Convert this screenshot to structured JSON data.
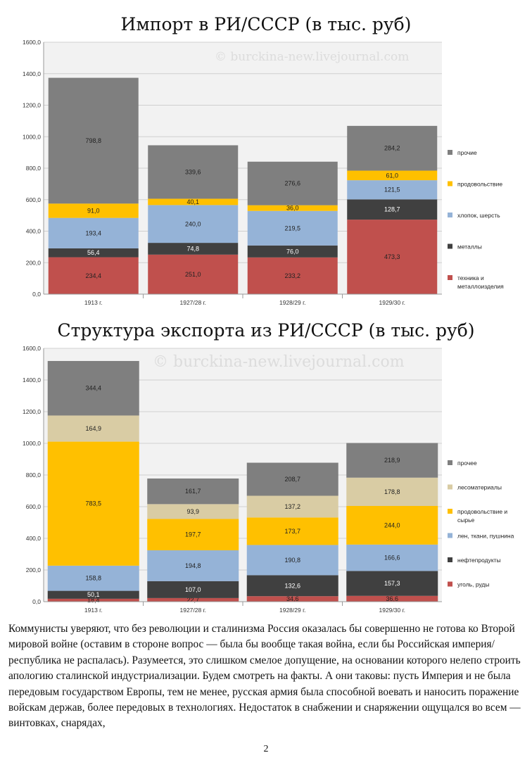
{
  "watermark": "© burckina-new.livejournal.com",
  "chart_data": [
    {
      "type": "bar",
      "stacked": true,
      "title": "Импорт в РИ/СССР (в тыс. руб)",
      "categories": [
        "1913 г.",
        "1927/28 г.",
        "1928/29 г.",
        "1929/30 г."
      ],
      "series": [
        {
          "name": "техника и металлоизделия",
          "values": [
            234.4,
            251.0,
            233.2,
            473.3
          ],
          "labels": [
            "234,4",
            "251,0",
            "233,2",
            "473,3"
          ],
          "color": "#c0504d"
        },
        {
          "name": "металлы",
          "values": [
            56.4,
            74.8,
            76.0,
            128.7
          ],
          "labels": [
            "56,4",
            "74,8",
            "76,0",
            "128,7"
          ],
          "color": "#404040"
        },
        {
          "name": "хлопок, шерсть",
          "values": [
            193.4,
            240.0,
            219.5,
            121.5
          ],
          "labels": [
            "193,4",
            "240,0",
            "219,5",
            "121,5"
          ],
          "color": "#95b3d7"
        },
        {
          "name": "продовольствие",
          "values": [
            91.0,
            40.1,
            36.0,
            61.0
          ],
          "labels": [
            "91,0",
            "40,1",
            "36,0",
            "61,0"
          ],
          "color": "#ffc000"
        },
        {
          "name": "прочие",
          "values": [
            798.8,
            339.6,
            276.6,
            284.2
          ],
          "labels": [
            "798,8",
            "339,6",
            "276,6",
            "284,2"
          ],
          "color": "#7f7f7f"
        }
      ],
      "yticks": [
        "0,0",
        "200,0",
        "400,0",
        "600,0",
        "800,0",
        "1000,0",
        "1200,0",
        "1400,0",
        "1600,0"
      ],
      "ylim": [
        0,
        1600
      ],
      "legend_position": "right",
      "grid": true
    },
    {
      "type": "bar",
      "stacked": true,
      "title": "Структура экспорта из РИ/СССР (в тыс. руб)",
      "categories": [
        "1913 г.",
        "1927/28 г.",
        "1928/29 г.",
        "1929/30 г."
      ],
      "series": [
        {
          "name": "уголь, руды",
          "values": [
            18.4,
            22.7,
            34.6,
            36.6
          ],
          "labels": [
            "18,4",
            "22,7",
            "34,6",
            "36,6"
          ],
          "color": "#c0504d"
        },
        {
          "name": "нефтепродукты",
          "values": [
            50.1,
            107.0,
            132.6,
            157.3
          ],
          "labels": [
            "50,1",
            "107,0",
            "132,6",
            "157,3"
          ],
          "color": "#404040"
        },
        {
          "name": "лен, ткани, пушнина",
          "values": [
            158.8,
            194.8,
            190.8,
            166.6
          ],
          "labels": [
            "158,8",
            "194,8",
            "190,8",
            "166,6"
          ],
          "color": "#95b3d7"
        },
        {
          "name": "продовольствие и сырье",
          "values": [
            783.5,
            197.7,
            173.7,
            244.0
          ],
          "labels": [
            "783,5",
            "197,7",
            "173,7",
            "244,0"
          ],
          "color": "#ffc000"
        },
        {
          "name": "лесоматериалы",
          "values": [
            164.9,
            93.9,
            137.2,
            178.8
          ],
          "labels": [
            "164,9",
            "93,9",
            "137,2",
            "178,8"
          ],
          "color": "#d9cca4"
        },
        {
          "name": "прочее",
          "values": [
            344.4,
            161.7,
            208.7,
            218.9
          ],
          "labels": [
            "344,4",
            "161,7",
            "208,7",
            "218,9"
          ],
          "color": "#7f7f7f"
        }
      ],
      "yticks": [
        "0,0",
        "200,0",
        "400,0",
        "600,0",
        "800,0",
        "1000,0",
        "1200,0",
        "1400,0",
        "1600,0"
      ],
      "ylim": [
        0,
        1600
      ],
      "legend_position": "right",
      "grid": true
    }
  ],
  "body_text": "Коммунисты уверяют, что без революции и сталинизма Россия оказалась бы совершенно не готова ко Второй мировой войне (оставим в стороне вопрос — была бы вообще такая война, если бы Российская империя/республика не распалась). Разумеется, это слишком смелое допущение, на основании которого нелепо строить апологию сталинской индустриализации. Будем смотреть на факты. А они таковы: пусть Империя и не была передовым государством Европы, тем не менее, русская армия была способной воевать и наносить поражение войскам держав, более передовых в технологиях. Недостаток в снабжении и снаряжении ощущался во всем — винтовках, снарядах,",
  "page_number": "2"
}
